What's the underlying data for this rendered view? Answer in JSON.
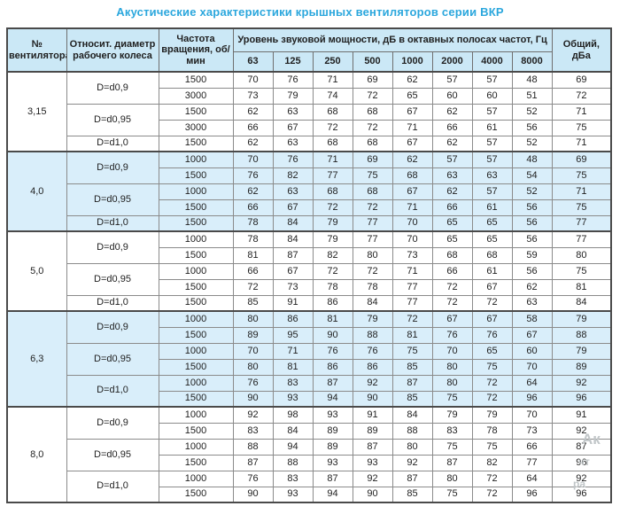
{
  "title": "Акустические характеристики крышных вентиляторов серии ВКР",
  "table": {
    "headers": {
      "fan_no": "№ вентилятора",
      "diameter": "Относит. диаметр рабочего колеса",
      "rpm": "Частота вращения, об/мин",
      "spl_group": "Уровень звуковой мощности, дБ в октавных полосах частот, Гц",
      "freqs": [
        "63",
        "125",
        "250",
        "500",
        "1000",
        "2000",
        "4000",
        "8000"
      ],
      "total": "Общий, дБа"
    },
    "sections": [
      {
        "fan": "3,15",
        "shaded": false,
        "groups": [
          {
            "diameter": "D=d0,9",
            "rows": [
              {
                "rpm": "1500",
                "levels": [
                  70,
                  76,
                  71,
                  69,
                  62,
                  57,
                  57,
                  48
                ],
                "total": 69
              },
              {
                "rpm": "3000",
                "levels": [
                  73,
                  79,
                  74,
                  72,
                  65,
                  60,
                  60,
                  51
                ],
                "total": 72
              }
            ]
          },
          {
            "diameter": "D=d0,95",
            "rows": [
              {
                "rpm": "1500",
                "levels": [
                  62,
                  63,
                  68,
                  68,
                  67,
                  62,
                  57,
                  52
                ],
                "total": 71
              },
              {
                "rpm": "3000",
                "levels": [
                  66,
                  67,
                  72,
                  72,
                  71,
                  66,
                  61,
                  56
                ],
                "total": 75
              }
            ]
          },
          {
            "diameter": "D=d1,0",
            "rows": [
              {
                "rpm": "1500",
                "levels": [
                  62,
                  63,
                  68,
                  68,
                  67,
                  62,
                  57,
                  52
                ],
                "total": 71
              }
            ]
          }
        ]
      },
      {
        "fan": "4,0",
        "shaded": true,
        "groups": [
          {
            "diameter": "D=d0,9",
            "rows": [
              {
                "rpm": "1000",
                "levels": [
                  70,
                  76,
                  71,
                  69,
                  62,
                  57,
                  57,
                  48
                ],
                "total": 69
              },
              {
                "rpm": "1500",
                "levels": [
                  76,
                  82,
                  77,
                  75,
                  68,
                  63,
                  63,
                  54
                ],
                "total": 75
              }
            ]
          },
          {
            "diameter": "D=d0,95",
            "rows": [
              {
                "rpm": "1000",
                "levels": [
                  62,
                  63,
                  68,
                  68,
                  67,
                  62,
                  57,
                  52
                ],
                "total": 71
              },
              {
                "rpm": "1500",
                "levels": [
                  66,
                  67,
                  72,
                  72,
                  71,
                  66,
                  61,
                  56
                ],
                "total": 75
              }
            ]
          },
          {
            "diameter": "D=d1,0",
            "rows": [
              {
                "rpm": "1500",
                "levels": [
                  78,
                  84,
                  79,
                  77,
                  70,
                  65,
                  65,
                  56
                ],
                "total": 77
              }
            ]
          }
        ]
      },
      {
        "fan": "5,0",
        "shaded": false,
        "groups": [
          {
            "diameter": "D=d0,9",
            "rows": [
              {
                "rpm": "1000",
                "levels": [
                  78,
                  84,
                  79,
                  77,
                  70,
                  65,
                  65,
                  56
                ],
                "total": 77
              },
              {
                "rpm": "1500",
                "levels": [
                  81,
                  87,
                  82,
                  80,
                  73,
                  68,
                  68,
                  59
                ],
                "total": 80
              }
            ]
          },
          {
            "diameter": "D=d0,95",
            "rows": [
              {
                "rpm": "1000",
                "levels": [
                  66,
                  67,
                  72,
                  72,
                  71,
                  66,
                  61,
                  56
                ],
                "total": 75
              },
              {
                "rpm": "1500",
                "levels": [
                  72,
                  73,
                  78,
                  78,
                  77,
                  72,
                  67,
                  62
                ],
                "total": 81
              }
            ]
          },
          {
            "diameter": "D=d1,0",
            "rows": [
              {
                "rpm": "1500",
                "levels": [
                  85,
                  91,
                  86,
                  84,
                  77,
                  72,
                  72,
                  63
                ],
                "total": 84
              }
            ]
          }
        ]
      },
      {
        "fan": "6,3",
        "shaded": true,
        "groups": [
          {
            "diameter": "D=d0,9",
            "rows": [
              {
                "rpm": "1000",
                "levels": [
                  80,
                  86,
                  81,
                  79,
                  72,
                  67,
                  67,
                  58
                ],
                "total": 79
              },
              {
                "rpm": "1500",
                "levels": [
                  89,
                  95,
                  90,
                  88,
                  81,
                  76,
                  76,
                  67
                ],
                "total": 88
              }
            ]
          },
          {
            "diameter": "D=d0,95",
            "rows": [
              {
                "rpm": "1000",
                "levels": [
                  70,
                  71,
                  76,
                  76,
                  75,
                  70,
                  65,
                  60
                ],
                "total": 79
              },
              {
                "rpm": "1500",
                "levels": [
                  80,
                  81,
                  86,
                  86,
                  85,
                  80,
                  75,
                  70
                ],
                "total": 89
              }
            ]
          },
          {
            "diameter": "D=d1,0",
            "rows": [
              {
                "rpm": "1000",
                "levels": [
                  76,
                  83,
                  87,
                  92,
                  87,
                  80,
                  72,
                  64
                ],
                "total": 92
              },
              {
                "rpm": "1500",
                "levels": [
                  90,
                  93,
                  94,
                  90,
                  85,
                  75,
                  72,
                  96
                ],
                "total": 96
              }
            ]
          }
        ]
      },
      {
        "fan": "8,0",
        "shaded": false,
        "groups": [
          {
            "diameter": "D=d0,9",
            "rows": [
              {
                "rpm": "1000",
                "levels": [
                  92,
                  98,
                  93,
                  91,
                  84,
                  79,
                  79,
                  70
                ],
                "total": 91
              },
              {
                "rpm": "1500",
                "levels": [
                  83,
                  84,
                  89,
                  89,
                  88,
                  83,
                  78,
                  73
                ],
                "total": 92
              }
            ]
          },
          {
            "diameter": "D=d0,95",
            "rows": [
              {
                "rpm": "1000",
                "levels": [
                  88,
                  94,
                  89,
                  87,
                  80,
                  75,
                  75,
                  66
                ],
                "total": 87
              },
              {
                "rpm": "1500",
                "levels": [
                  87,
                  88,
                  93,
                  93,
                  92,
                  87,
                  82,
                  77
                ],
                "total": 96
              }
            ]
          },
          {
            "diameter": "D=d1,0",
            "rows": [
              {
                "rpm": "1000",
                "levels": [
                  76,
                  83,
                  87,
                  92,
                  87,
                  80,
                  72,
                  64
                ],
                "total": 92
              },
              {
                "rpm": "1500",
                "levels": [
                  90,
                  93,
                  94,
                  90,
                  85,
                  75,
                  72,
                  96
                ],
                "total": 96
              }
            ]
          }
        ]
      }
    ]
  },
  "watermark": {
    "fragments": [
      "Ак",
      "чт",
      "ра"
    ]
  }
}
